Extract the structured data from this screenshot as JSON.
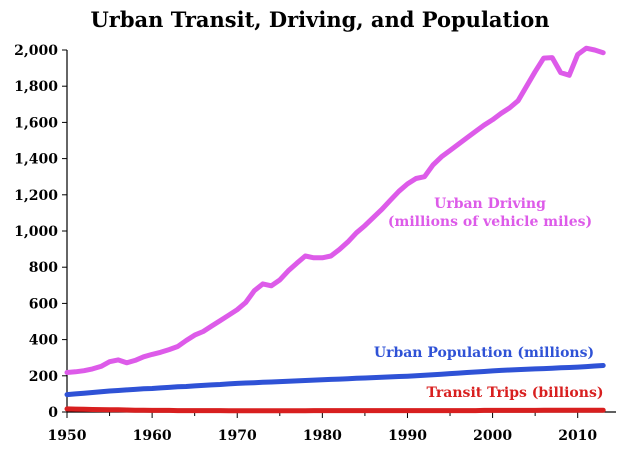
{
  "chart_data": {
    "type": "line",
    "title": "Urban Transit, Driving, and Population",
    "xlabel": "",
    "ylabel": "",
    "xlim": [
      1950,
      2013
    ],
    "ylim": [
      0,
      2000
    ],
    "x_ticks": [
      "1950",
      "1960",
      "1970",
      "1980",
      "1990",
      "2000",
      "2010"
    ],
    "y_ticks": [
      "0",
      "200",
      "400",
      "600",
      "800",
      "1,000",
      "1,200",
      "1,400",
      "1,600",
      "1,800",
      "2,000"
    ],
    "grid": false,
    "x": [
      1950,
      1951,
      1952,
      1953,
      1954,
      1955,
      1956,
      1957,
      1958,
      1959,
      1960,
      1961,
      1962,
      1963,
      1964,
      1965,
      1966,
      1967,
      1968,
      1969,
      1970,
      1971,
      1972,
      1973,
      1974,
      1975,
      1976,
      1977,
      1978,
      1979,
      1980,
      1981,
      1982,
      1983,
      1984,
      1985,
      1986,
      1987,
      1988,
      1989,
      1990,
      1991,
      1992,
      1993,
      1994,
      1995,
      1996,
      1997,
      1998,
      1999,
      2000,
      2001,
      2002,
      2003,
      2004,
      2005,
      2006,
      2007,
      2008,
      2009,
      2010,
      2011,
      2012,
      2013
    ],
    "series": [
      {
        "name": "Urban Driving (millions of vehicle miles)",
        "label_lines": [
          "Urban Driving",
          "(millions of vehicle miles)"
        ],
        "color": "#dd5be9",
        "values": [
          218,
          222,
          228,
          238,
          252,
          278,
          288,
          272,
          285,
          305,
          318,
          330,
          345,
          362,
          395,
          425,
          445,
          475,
          505,
          535,
          565,
          605,
          670,
          708,
          697,
          730,
          780,
          822,
          862,
          852,
          852,
          862,
          898,
          940,
          990,
          1030,
          1075,
          1120,
          1170,
          1220,
          1260,
          1290,
          1300,
          1365,
          1410,
          1445,
          1480,
          1515,
          1550,
          1585,
          1615,
          1650,
          1680,
          1720,
          1800,
          1880,
          1955,
          1958,
          1875,
          1860,
          1975,
          2010,
          2000,
          1985
        ]
      },
      {
        "name": "Urban Population (millions)",
        "label_lines": [
          "Urban Population (millions)"
        ],
        "color": "#2f52d6",
        "values": [
          96,
          100,
          104,
          108,
          112,
          116,
          119,
          122,
          125,
          128,
          130,
          133,
          136,
          139,
          141,
          144,
          147,
          150,
          152,
          155,
          158,
          160,
          162,
          164,
          166,
          168,
          170,
          172,
          174,
          176,
          178,
          180,
          182,
          184,
          186,
          188,
          190,
          192,
          194,
          196,
          198,
          200,
          203,
          206,
          209,
          212,
          215,
          218,
          221,
          224,
          227,
          230,
          232,
          234,
          236,
          238,
          240,
          242,
          244,
          246,
          248,
          251,
          254,
          257
        ]
      },
      {
        "name": "Transit Trips (billions)",
        "label_lines": [
          "Transit Trips (billions)"
        ],
        "color": "#d81f1f",
        "values": [
          17,
          16,
          15,
          14,
          13,
          12,
          12,
          11,
          10,
          10,
          9,
          9,
          9,
          8,
          8,
          8,
          8,
          8,
          8,
          7,
          7,
          7,
          7,
          7,
          7,
          7,
          7,
          7,
          7,
          8,
          8,
          8,
          8,
          8,
          8,
          8,
          8,
          8,
          8,
          8,
          8,
          8,
          8,
          8,
          8,
          8,
          8,
          8,
          8,
          9,
          9,
          9,
          9,
          9,
          9,
          9,
          10,
          10,
          10,
          10,
          10,
          10,
          10,
          10
        ]
      }
    ]
  }
}
